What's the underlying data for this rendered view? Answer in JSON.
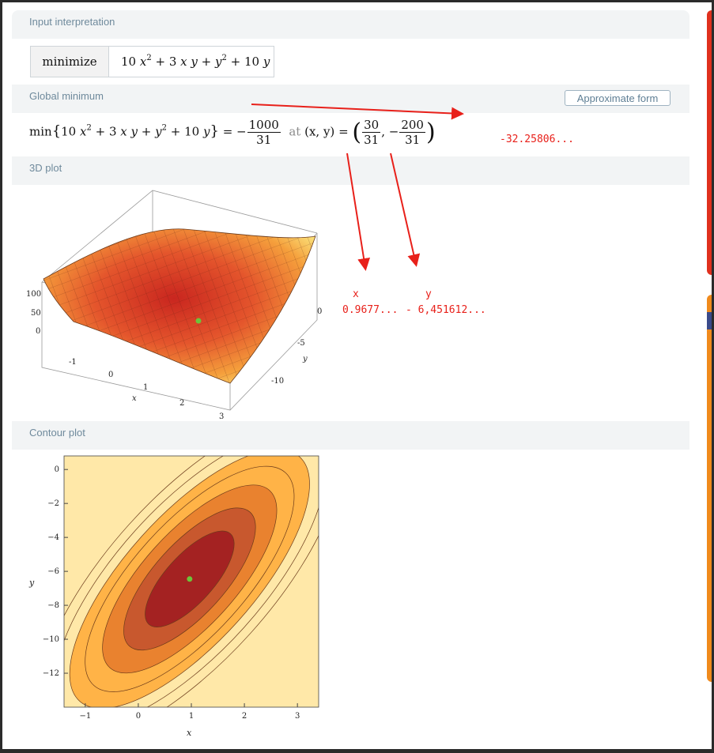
{
  "pods": {
    "input": {
      "title": "Input interpretation",
      "key": "minimize"
    },
    "global": {
      "title": "Global minimum",
      "approx_button": "Approximate form",
      "at_text": "at",
      "vars": "(x, y)"
    },
    "plot3d": {
      "title": "3D plot"
    },
    "contour": {
      "title": "Contour plot"
    }
  },
  "math": {
    "func_coef1": "10",
    "func_coef2": "3",
    "func_coef3": "10",
    "min_prefix": "min",
    "value_num": "1000",
    "value_den": "31",
    "x_num": "30",
    "x_den": "31",
    "y_num": "200",
    "y_den": "31"
  },
  "annotations": {
    "min_decimal": "-32.25806...",
    "x_label": "x",
    "x_decimal": "0.9677...",
    "y_label": "y",
    "y_decimal": "- 6,451612..."
  },
  "plot3d": {
    "z_ticks": [
      "100",
      "50",
      "0"
    ],
    "x_ticks": [
      "-1",
      "0",
      "1",
      "2",
      "3"
    ],
    "y_ticks": [
      "0",
      "-5",
      "-10"
    ],
    "x_label": "x",
    "y_label": "y"
  },
  "contour_plot": {
    "y_ticks": [
      "0",
      "-2",
      "-4",
      "-6",
      "-8",
      "-10",
      "-12"
    ],
    "x_ticks": [
      "-1",
      "0",
      "1",
      "2",
      "3"
    ],
    "x_label": "x",
    "y_label": "y",
    "xlim": [
      -1.4,
      3.4
    ],
    "ylim": [
      -14,
      0.8
    ],
    "min_point": [
      0.9677,
      -6.4516
    ],
    "colors": {
      "core": "#a42222",
      "ring2": "#c8582e",
      "ring3": "#e9822f",
      "outer": "#ffb347",
      "light": "#ffe8a8",
      "point": "#6cc43a"
    }
  },
  "colors": {
    "annotation": "#e8201a",
    "heading": "#6f8a9c",
    "right_bar_red": "#e0301e",
    "right_bar_orange": "#f08a1c"
  }
}
